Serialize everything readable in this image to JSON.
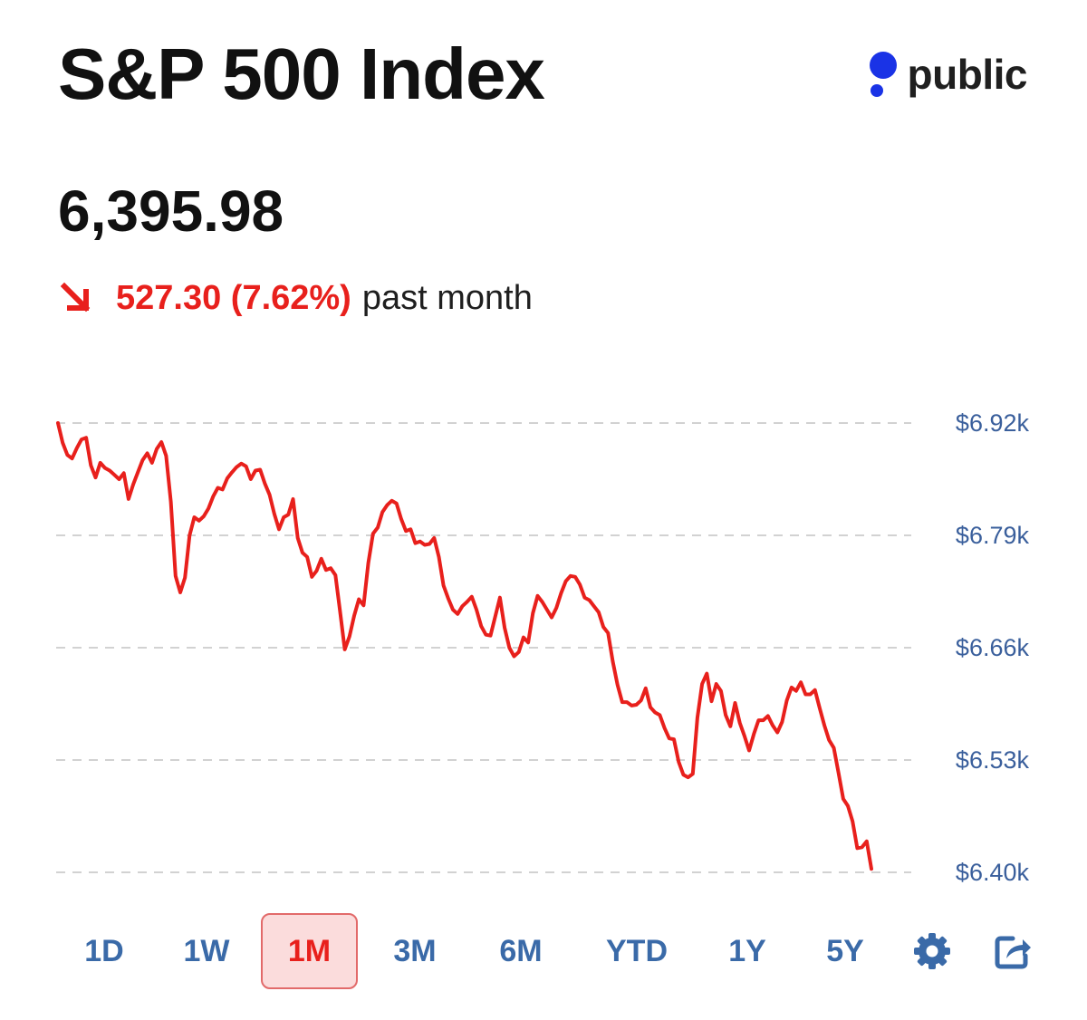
{
  "header": {
    "title": "S&P 500 Index",
    "brand_name": "public",
    "brand_icon": "public-logo-icon",
    "brand_color": "#1a33e6"
  },
  "quote": {
    "price": "6,395.98",
    "change_value": "527.30 (7.62%)",
    "change_period": "past month",
    "change_direction": "down",
    "change_icon": "arrow-down-right-icon",
    "down_color": "#e8201c"
  },
  "range_selector": {
    "options": [
      {
        "label": "1D",
        "active": false
      },
      {
        "label": "1W",
        "active": false
      },
      {
        "label": "1M",
        "active": true
      },
      {
        "label": "3M",
        "active": false
      },
      {
        "label": "6M",
        "active": false
      },
      {
        "label": "YTD",
        "active": false
      },
      {
        "label": "1Y",
        "active": false
      },
      {
        "label": "5Y",
        "active": false
      }
    ],
    "settings_icon": "gear-icon",
    "share_icon": "share-icon"
  },
  "chart_data": {
    "type": "line",
    "title": "S&P 500 Index",
    "xlabel": "",
    "ylabel": "",
    "ylim": [
      6400,
      6920
    ],
    "yticks": [
      {
        "value": 6920,
        "label": "$6.92k"
      },
      {
        "value": 6790,
        "label": "$6.79k"
      },
      {
        "value": 6660,
        "label": "$6.66k"
      },
      {
        "value": 6530,
        "label": "$6.53k"
      },
      {
        "value": 6400,
        "label": "$6.40k"
      }
    ],
    "grid": true,
    "grid_style": "dashed",
    "line_color": "#e8201c",
    "series": [
      {
        "name": "S&P 500",
        "values": [
          6920,
          6897,
          6883,
          6879,
          6891,
          6901,
          6903,
          6871,
          6857,
          6874,
          6868,
          6865,
          6860,
          6855,
          6862,
          6832,
          6849,
          6863,
          6877,
          6885,
          6874,
          6890,
          6898,
          6882,
          6829,
          6743,
          6724,
          6741,
          6790,
          6811,
          6807,
          6812,
          6821,
          6835,
          6845,
          6843,
          6856,
          6863,
          6869,
          6873,
          6870,
          6855,
          6865,
          6866,
          6850,
          6837,
          6815,
          6797,
          6811,
          6814,
          6832,
          6787,
          6770,
          6765,
          6742,
          6749,
          6763,
          6750,
          6752,
          6744,
          6702,
          6658,
          6673,
          6697,
          6716,
          6709,
          6758,
          6792,
          6799,
          6817,
          6825,
          6830,
          6827,
          6809,
          6795,
          6797,
          6781,
          6783,
          6779,
          6780,
          6787,
          6765,
          6732,
          6717,
          6704,
          6699,
          6708,
          6713,
          6719,
          6704,
          6685,
          6675,
          6674,
          6696,
          6718,
          6683,
          6660,
          6650,
          6655,
          6672,
          6666,
          6700,
          6720,
          6713,
          6704,
          6695,
          6706,
          6723,
          6737,
          6743,
          6742,
          6733,
          6718,
          6715,
          6708,
          6701,
          6684,
          6677,
          6644,
          6617,
          6597,
          6597,
          6593,
          6594,
          6599,
          6613,
          6591,
          6585,
          6582,
          6567,
          6555,
          6554,
          6528,
          6513,
          6510,
          6514,
          6579,
          6618,
          6630,
          6598,
          6618,
          6610,
          6582,
          6569,
          6596,
          6573,
          6558,
          6541,
          6560,
          6576,
          6576,
          6581,
          6570,
          6562,
          6574,
          6599,
          6614,
          6610,
          6620,
          6606,
          6606,
          6611,
          6590,
          6570,
          6553,
          6544,
          6515,
          6485,
          6477,
          6459,
          6428,
          6429,
          6436,
          6404
        ]
      }
    ]
  }
}
